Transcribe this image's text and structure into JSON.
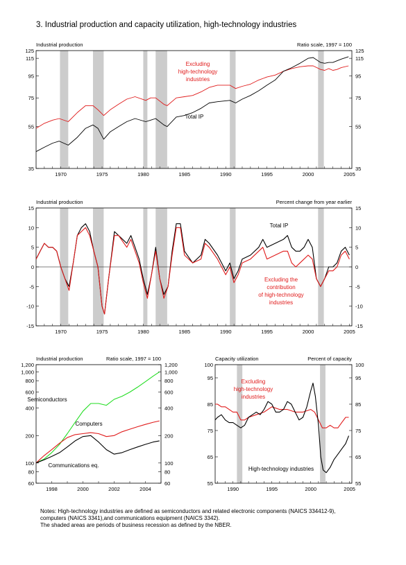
{
  "page": {
    "title": "3.  Industrial production and capacity utilization, high-technology industries",
    "notes": [
      "Notes:  High-technology industries are defined as semiconductors and related electronic components (NAICS 334412-9),",
      "computers (NAICS 3341),and communications equipment (NAICS 3342).",
      "The shaded areas are periods of business recession as defined by the NBER."
    ]
  },
  "chart_data": [
    {
      "id": "panel1",
      "type": "line",
      "title": "Industrial production",
      "scale_note": "Ratio scale, 1997 = 100",
      "log_scale": true,
      "xlim": [
        1967,
        2005.3
      ],
      "ylim": [
        35,
        125
      ],
      "x_ticks": [
        1970,
        1975,
        1980,
        1985,
        1990,
        1995,
        2000,
        2005
      ],
      "y_ticks": [
        35,
        55,
        75,
        95,
        115,
        125
      ],
      "recessions": [
        [
          1969.9,
          1970.9
        ],
        [
          1973.9,
          1975.2
        ],
        [
          1980.0,
          1980.5
        ],
        [
          1981.5,
          1982.9
        ],
        [
          1990.5,
          1991.2
        ],
        [
          2001.2,
          2001.9
        ]
      ],
      "series": [
        {
          "name": "Excluding high-technology industries",
          "color": "#e01a1a",
          "x": [
            1967,
            1968,
            1969,
            1969.8,
            1970.9,
            1972,
            1973,
            1973.9,
            1974.5,
            1975.2,
            1976,
            1977,
            1978,
            1979,
            1980.3,
            1980.9,
            1981.5,
            1982.5,
            1982.9,
            1984,
            1985,
            1986,
            1987,
            1988,
            1989,
            1990.5,
            1991.2,
            1992,
            1993,
            1994,
            1995,
            1996,
            1997,
            1998,
            1999,
            2000,
            2000.6,
            2001.5,
            2002,
            2002.5,
            2003,
            2003.5,
            2004,
            2004.9
          ],
          "values": [
            54,
            57,
            59,
            60,
            58,
            64,
            69,
            69,
            66,
            62,
            66,
            70,
            74,
            76,
            73,
            75,
            75,
            70,
            69,
            75,
            76,
            77,
            80,
            84,
            86,
            86,
            83,
            85,
            87,
            91,
            94,
            96,
            100,
            103,
            105,
            106,
            106,
            102,
            101,
            103,
            101,
            102,
            104,
            106
          ]
        },
        {
          "name": "Total IP",
          "color": "#000000",
          "x": [
            1967,
            1968,
            1969,
            1969.8,
            1970.9,
            1972,
            1973,
            1973.9,
            1974.5,
            1975.2,
            1976,
            1977,
            1978,
            1979,
            1980.3,
            1980.9,
            1981.5,
            1982.5,
            1982.9,
            1984,
            1985,
            1986,
            1987,
            1988,
            1989,
            1990.5,
            1991.2,
            1992,
            1993,
            1994,
            1995,
            1996,
            1997,
            1998,
            1999,
            2000,
            2000.6,
            2001.5,
            2002,
            2002.5,
            2003,
            2003.5,
            2004,
            2004.9
          ],
          "values": [
            42,
            44,
            46,
            47,
            45,
            49,
            54,
            56,
            54,
            48,
            52,
            55,
            58,
            60,
            58,
            59,
            60,
            56,
            55,
            61,
            62,
            64,
            67,
            71,
            72,
            73,
            71,
            74,
            77,
            81,
            86,
            91,
            100,
            104,
            109,
            115,
            116,
            110,
            109,
            110,
            110,
            112,
            114,
            117
          ]
        }
      ],
      "annotations": [
        "Excluding",
        "high-technology",
        "industries",
        "Total IP"
      ]
    },
    {
      "id": "panel2",
      "type": "line",
      "title": "Industrial production",
      "scale_note": "Percent change from year earlier",
      "xlim": [
        1967,
        2005.3
      ],
      "ylim": [
        -15,
        15
      ],
      "x_ticks": [
        1970,
        1975,
        1980,
        1985,
        1990,
        1995,
        2000,
        2005
      ],
      "y_ticks": [
        -15,
        -10,
        -5,
        0,
        5,
        10,
        15
      ],
      "recessions": [
        [
          1969.9,
          1970.9
        ],
        [
          1973.9,
          1975.2
        ],
        [
          1980.0,
          1980.5
        ],
        [
          1981.5,
          1982.9
        ],
        [
          1990.5,
          1991.2
        ],
        [
          2001.2,
          2001.9
        ]
      ],
      "series": [
        {
          "name": "Total IP",
          "color": "#000000",
          "x": [
            1967,
            1967.5,
            1968,
            1968.5,
            1969,
            1969.5,
            1970,
            1970.5,
            1971,
            1971.5,
            1972,
            1972.5,
            1973,
            1973.5,
            1974,
            1974.5,
            1975,
            1975.3,
            1975.8,
            1976.5,
            1977,
            1978,
            1978.5,
            1979,
            1979.5,
            1980,
            1980.5,
            1981,
            1981.5,
            1982,
            1982.5,
            1983,
            1983.5,
            1984,
            1984.5,
            1985,
            1986,
            1987,
            1987.5,
            1988,
            1989,
            1989.5,
            1990,
            1990.5,
            1991,
            1991.5,
            1992,
            1993,
            1994,
            1994.5,
            1995,
            1996,
            1997,
            1997.5,
            1998,
            1998.5,
            1999,
            1999.5,
            2000,
            2000.5,
            2001,
            2001.5,
            2002,
            2002.5,
            2003,
            2003.5,
            2004,
            2004.5,
            2005
          ],
          "values": [
            2,
            4,
            6,
            5,
            5,
            4,
            0,
            -3,
            -5,
            1,
            8,
            10,
            11,
            9,
            4,
            0,
            -10,
            -12,
            -3,
            9,
            8,
            6,
            8,
            5,
            2,
            -3,
            -7,
            -2,
            5,
            -3,
            -7,
            -5,
            4,
            11,
            11,
            4,
            1,
            3,
            7,
            6,
            3,
            1,
            -1,
            1,
            -3,
            -1,
            2,
            3,
            5,
            7,
            5,
            6,
            7,
            8,
            5,
            4,
            4,
            5,
            7,
            5,
            -3,
            -5,
            -3,
            0,
            0,
            1,
            4,
            5,
            3
          ]
        },
        {
          "name": "Excluding the contribution of high-technology industries",
          "color": "#e01a1a",
          "x": [
            1967,
            1967.5,
            1968,
            1968.5,
            1969,
            1969.5,
            1970,
            1970.5,
            1971,
            1971.5,
            1972,
            1972.5,
            1973,
            1973.5,
            1974,
            1974.5,
            1975,
            1975.3,
            1975.8,
            1976.5,
            1977,
            1978,
            1978.5,
            1979,
            1979.5,
            1980,
            1980.5,
            1981,
            1981.5,
            1982,
            1982.5,
            1983,
            1983.5,
            1984,
            1984.5,
            1985,
            1986,
            1987,
            1987.5,
            1988,
            1989,
            1989.5,
            1990,
            1990.5,
            1991,
            1991.5,
            1992,
            1993,
            1994,
            1994.5,
            1995,
            1996,
            1997,
            1997.5,
            1998,
            1998.5,
            1999,
            1999.5,
            2000,
            2000.5,
            2001,
            2001.5,
            2002,
            2002.5,
            2003,
            2003.5,
            2004,
            2004.5,
            2005
          ],
          "values": [
            2,
            4,
            6,
            5,
            5,
            4,
            0,
            -3,
            -6,
            1,
            8,
            9,
            10,
            8,
            4,
            0,
            -10,
            -12,
            -3,
            8,
            8,
            5,
            7,
            4,
            1,
            -4,
            -8,
            -2,
            4,
            -3,
            -8,
            -5,
            3,
            10,
            10,
            3,
            1,
            2,
            6,
            5,
            2,
            0,
            -2,
            0,
            -4,
            -2,
            1,
            2,
            4,
            5,
            2,
            3,
            4,
            4,
            1,
            0,
            1,
            2,
            3,
            2,
            -3,
            -5,
            -3,
            -1,
            -1,
            0,
            3,
            4,
            2
          ]
        }
      ],
      "annotations": [
        "Total IP",
        "Excluding the",
        "contribution",
        "of high-technology",
        "industries"
      ]
    },
    {
      "id": "panel3",
      "type": "line",
      "title": "Industrial production",
      "scale_note": "Ratio scale, 1997 = 100",
      "log_scale": true,
      "xlim": [
        1997,
        2005
      ],
      "ylim": [
        60,
        1200
      ],
      "x_ticks": [
        1998,
        2000,
        2002,
        2004
      ],
      "y_ticks": [
        60,
        80,
        100,
        200,
        400,
        600,
        800,
        1000,
        1200
      ],
      "y_tick_labels": [
        "60",
        "80",
        "100",
        "200",
        "400",
        "600",
        "800",
        "1,000",
        "1,200"
      ],
      "series": [
        {
          "name": "Semiconductors",
          "color": "#22dd22",
          "x": [
            1997,
            1997.5,
            1998,
            1998.5,
            1999,
            1999.5,
            2000,
            2000.5,
            2001,
            2001.5,
            2002,
            2002.5,
            2003,
            2003.5,
            2004,
            2004.5,
            2004.9
          ],
          "values": [
            100,
            110,
            130,
            160,
            210,
            280,
            370,
            450,
            450,
            430,
            500,
            540,
            600,
            680,
            780,
            900,
            1000
          ]
        },
        {
          "name": "Computers",
          "color": "#e01a1a",
          "x": [
            1997,
            1997.5,
            1998,
            1998.5,
            1999,
            1999.5,
            2000,
            2000.5,
            2001,
            2001.5,
            2002,
            2002.5,
            2003,
            2003.5,
            2004,
            2004.5,
            2004.9
          ],
          "values": [
            100,
            120,
            140,
            165,
            190,
            205,
            210,
            215,
            210,
            195,
            200,
            220,
            235,
            250,
            265,
            280,
            290
          ]
        },
        {
          "name": "Communications eq.",
          "color": "#000000",
          "x": [
            1997,
            1997.5,
            1998,
            1998.5,
            1999,
            1999.5,
            2000,
            2000.5,
            2001,
            2001.5,
            2002,
            2002.5,
            2003,
            2003.5,
            2004,
            2004.5,
            2004.9
          ],
          "values": [
            100,
            108,
            118,
            130,
            150,
            175,
            195,
            200,
            170,
            140,
            125,
            130,
            140,
            150,
            160,
            170,
            175
          ]
        }
      ],
      "annotations": [
        "Semiconductors",
        "Computers",
        "Communications eq."
      ]
    },
    {
      "id": "panel4",
      "type": "line",
      "title": "Capacity utilization",
      "scale_note": "Percent of capacity",
      "xlim": [
        1987.7,
        2005.3
      ],
      "ylim": [
        55,
        100
      ],
      "x_ticks": [
        1990,
        1995,
        2000,
        2005
      ],
      "y_ticks": [
        55,
        65,
        75,
        85,
        95,
        100
      ],
      "recessions": [
        [
          1990.5,
          1991.2
        ],
        [
          2001.2,
          2001.9
        ]
      ],
      "series": [
        {
          "name": "Excluding high-technology industries",
          "color": "#e01a1a",
          "x": [
            1987.7,
            1988,
            1988.5,
            1989,
            1989.5,
            1990,
            1990.5,
            1991,
            1991.5,
            1992,
            1993,
            1994,
            1995,
            1996,
            1997,
            1998,
            1999,
            2000,
            2000.5,
            2001,
            2001.5,
            2002,
            2002.5,
            2003,
            2003.5,
            2004,
            2004.5,
            2004.9
          ],
          "values": [
            85,
            85,
            84,
            84,
            83,
            82,
            82,
            79,
            79,
            80,
            81,
            82,
            84,
            83,
            83,
            82,
            82,
            83,
            82,
            79,
            76,
            76,
            77,
            76,
            76,
            78,
            80,
            80
          ]
        },
        {
          "name": "High-technology industries",
          "color": "#000000",
          "x": [
            1987.7,
            1988,
            1988.5,
            1989,
            1989.5,
            1990,
            1990.5,
            1991,
            1991.5,
            1992,
            1992.5,
            1993,
            1993.5,
            1994,
            1994.5,
            1995,
            1995.5,
            1996,
            1996.5,
            1997,
            1997.5,
            1998,
            1998.5,
            1999,
            1999.5,
            2000,
            2000.3,
            2000.6,
            2001,
            2001.3,
            2001.6,
            2002,
            2002.5,
            2003,
            2003.5,
            2004,
            2004.5,
            2004.9
          ],
          "values": [
            79,
            80,
            81,
            79,
            78,
            78,
            77,
            76,
            77,
            80,
            81,
            82,
            81,
            83,
            86,
            85,
            82,
            82,
            83,
            86,
            85,
            82,
            79,
            80,
            84,
            90,
            93,
            88,
            77,
            65,
            60,
            59,
            61,
            64,
            66,
            68,
            70,
            73
          ]
        }
      ],
      "annotations": [
        "Excluding",
        "high-technology",
        "industries",
        "High-technology industries"
      ]
    }
  ]
}
